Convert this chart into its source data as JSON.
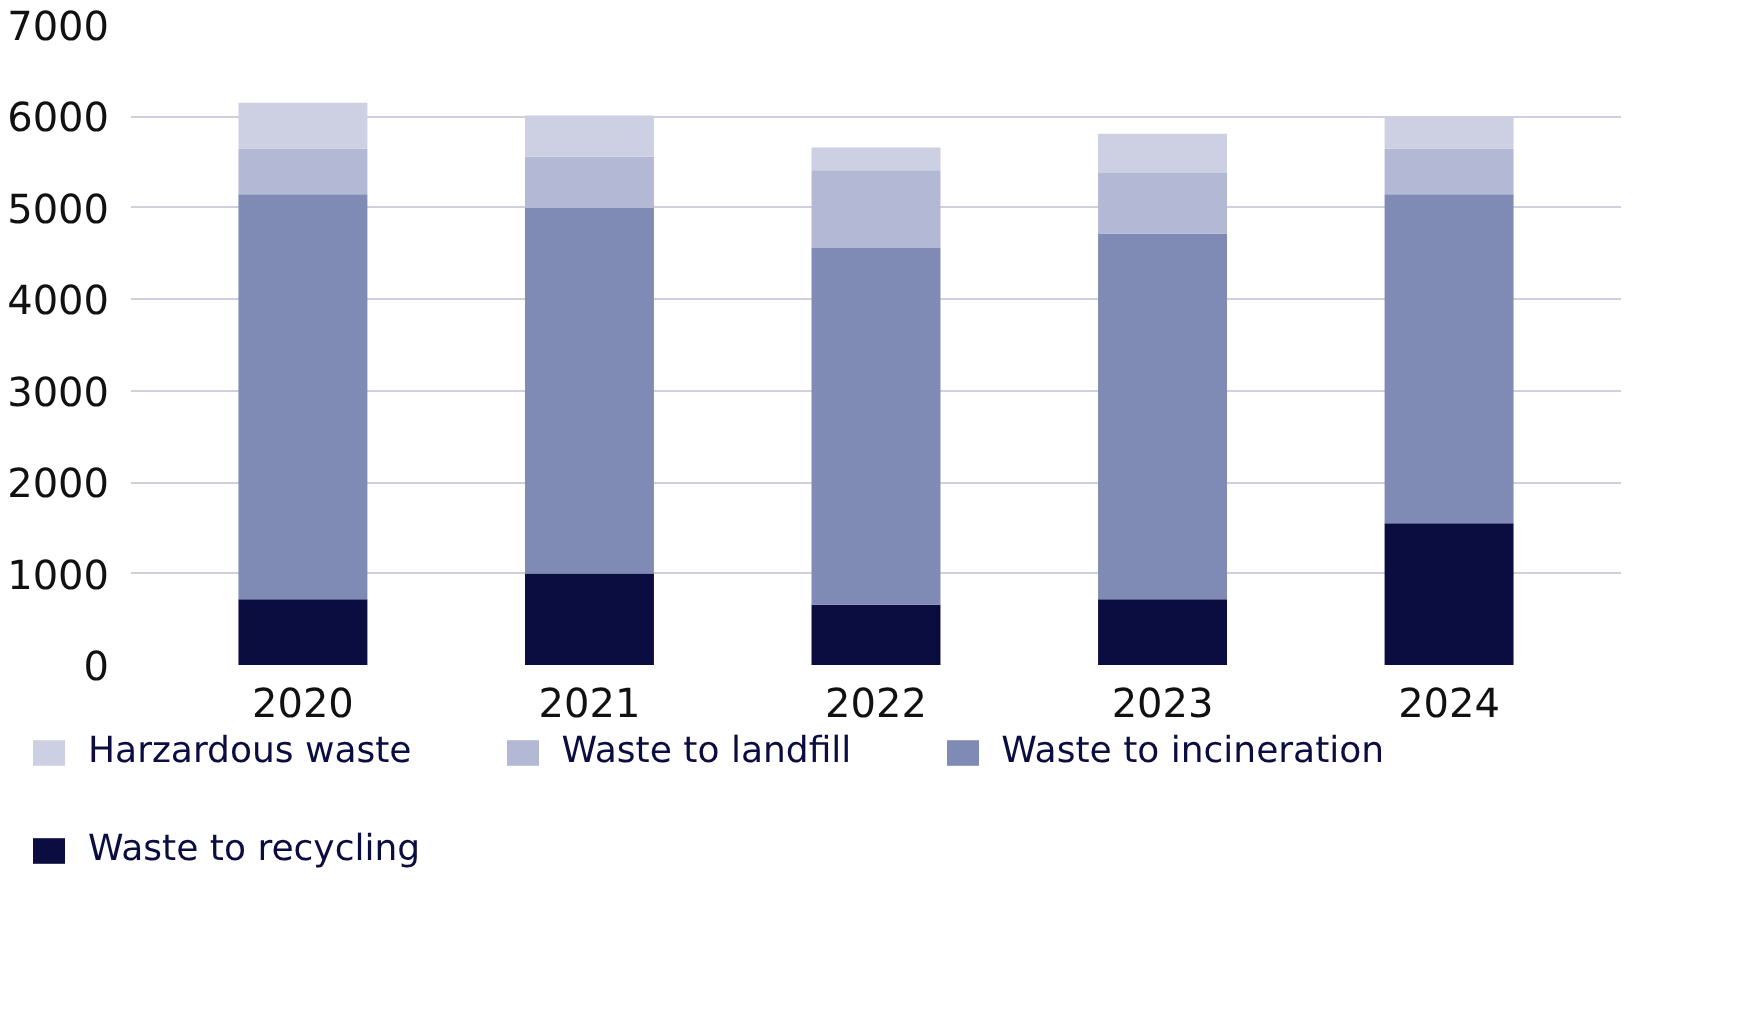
{
  "chart_data": {
    "type": "bar",
    "stacked": true,
    "categories": [
      "2020",
      "2021",
      "2022",
      "2023",
      "2024"
    ],
    "series": [
      {
        "name": "Waste to recycling",
        "color": "#0b0c3f",
        "values": [
          720,
          1000,
          660,
          720,
          1550
        ]
      },
      {
        "name": "Waste to incineration",
        "color": "#7f8bb5",
        "values": [
          4430,
          4000,
          3900,
          4000,
          3600
        ]
      },
      {
        "name": "Waste to landfill",
        "color": "#b3b8d5",
        "values": [
          500,
          560,
          850,
          660,
          500
        ]
      },
      {
        "name": "Harzardous waste",
        "color": "#ccd0e2",
        "values": [
          500,
          450,
          250,
          430,
          350
        ]
      }
    ],
    "ylim": [
      0,
      7000
    ],
    "yticks": [
      0,
      1000,
      2000,
      3000,
      4000,
      5000,
      6000,
      7000
    ],
    "grid": "y",
    "legend": "bottom"
  }
}
